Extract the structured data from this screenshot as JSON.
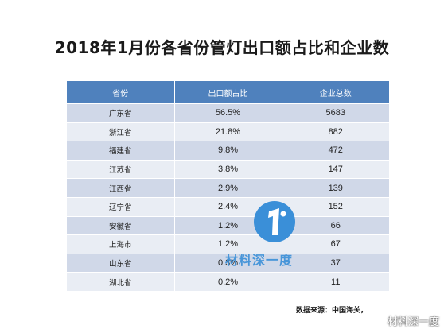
{
  "title": "2018年1月份各省份管灯出口额占比和企业数",
  "table": {
    "headers": [
      "省份",
      "出口额占比",
      "企业总数"
    ],
    "rows": [
      [
        "广东省",
        "56.5%",
        "5683"
      ],
      [
        "浙江省",
        "21.8%",
        "882"
      ],
      [
        "福建省",
        "9.8%",
        "472"
      ],
      [
        "江苏省",
        "3.8%",
        "147"
      ],
      [
        "江西省",
        "2.9%",
        "139"
      ],
      [
        "辽宁省",
        "2.4%",
        "152"
      ],
      [
        "安徽省",
        "1.2%",
        "66"
      ],
      [
        "上海市",
        "1.2%",
        "67"
      ],
      [
        "山东省",
        "0.3%",
        "37"
      ],
      [
        "湖北省",
        "0.2%",
        "11"
      ]
    ]
  },
  "source": "数据来源：中国海关，",
  "watermark": {
    "logo_text": "材料深一度",
    "corner_text": "材料深一度",
    "brand_color": "#3a8fd8"
  },
  "colors": {
    "header_bg": "#4f81bd",
    "row_odd": "#d0d8e8",
    "row_even": "#e9edf4"
  }
}
